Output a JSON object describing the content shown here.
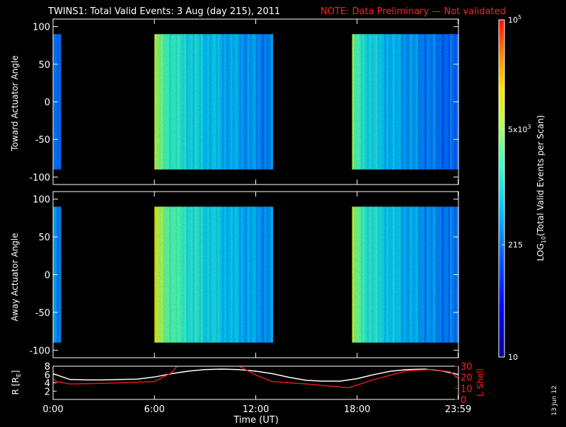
{
  "title": {
    "text": "TWINS1: Total Valid Events:  3 Aug (day 215), 2011",
    "note": "NOTE: Data Preliminary — Not validated",
    "note_color": "#ff2020"
  },
  "stamp": "13 Jun 12",
  "chart_data": [
    {
      "type": "heatmap",
      "panel": "toward",
      "ylabel": "Toward Actuator Angle",
      "ylim": [
        -110,
        110
      ],
      "yticks": [
        100,
        50,
        0,
        -50,
        -100
      ],
      "angle_range": [
        -90,
        90
      ],
      "x_unit": "hours UT",
      "xlim": [
        0,
        24
      ],
      "data_intervals": [
        {
          "start": 0.0,
          "end": 0.45,
          "log_value_start": 2.3,
          "log_value_end": 2.2
        },
        {
          "start": 6.0,
          "end": 13.0,
          "log_value_start": 3.8,
          "log_value_end": 2.4
        },
        {
          "start": 17.7,
          "end": 24.0,
          "log_value_start": 3.6,
          "log_value_end": 2.2
        }
      ]
    },
    {
      "type": "heatmap",
      "panel": "away",
      "ylabel": "Away Actuator Angle",
      "ylim": [
        -110,
        110
      ],
      "yticks": [
        100,
        50,
        0,
        -50,
        -100
      ],
      "angle_range": [
        -90,
        90
      ],
      "x_unit": "hours UT",
      "xlim": [
        0,
        24
      ],
      "data_intervals": [
        {
          "start": 0.0,
          "end": 0.45,
          "log_value_start": 2.6,
          "log_value_end": 2.3
        },
        {
          "start": 6.0,
          "end": 13.0,
          "log_value_start": 4.0,
          "log_value_end": 2.5
        },
        {
          "start": 17.7,
          "end": 24.0,
          "log_value_start": 3.8,
          "log_value_end": 2.3
        }
      ]
    },
    {
      "type": "line",
      "panel": "orbit",
      "ylabel_left": "R [R",
      "ylabel_left_sub": "E",
      "ylabel_left_close": "]",
      "ylabel_right": "L Shell",
      "ylim_left": [
        0,
        8
      ],
      "ylim_right": [
        0,
        30
      ],
      "yticks_left": [
        8,
        6,
        4,
        2
      ],
      "yticks_right": [
        30,
        20,
        10,
        0
      ],
      "xlim": [
        0,
        24
      ],
      "xticks": [
        0,
        6,
        12,
        18,
        23.98
      ],
      "xtick_labels": [
        "0:00",
        "6:00",
        "12:00",
        "18:00",
        "23:59"
      ],
      "xlabel": "Time (UT)",
      "series": [
        {
          "color": "#ffffff",
          "axis": "left",
          "x": [
            0,
            1,
            2,
            3,
            4,
            5,
            6,
            7,
            8,
            9,
            10,
            11,
            12,
            13,
            14,
            15,
            16,
            17,
            18,
            19,
            20,
            21,
            22,
            23,
            24
          ],
          "y": [
            6.2,
            4.8,
            4.7,
            4.7,
            4.8,
            4.9,
            5.4,
            6.2,
            6.8,
            7.2,
            7.3,
            7.2,
            6.8,
            6.2,
            5.3,
            4.6,
            4.4,
            4.4,
            5.0,
            6.0,
            6.8,
            7.2,
            7.3,
            6.9,
            6.0
          ]
        },
        {
          "color": "#e01818",
          "axis": "right",
          "x": [
            0,
            0.2,
            1,
            3,
            6,
            7,
            7.4,
            10.9,
            12,
            13,
            15,
            17.5,
            19,
            21,
            22.5,
            23.5,
            24
          ],
          "y": [
            19,
            16,
            14,
            14.5,
            16,
            24,
            31,
            31,
            22,
            16,
            14,
            10.5,
            18,
            26,
            27,
            25,
            19
          ]
        }
      ]
    },
    {
      "type": "colorbar",
      "label_prefix": "LOG",
      "label_sub": "10",
      "label_suffix": "(Total Valid  Events per Scan)",
      "log_range": [
        1,
        5
      ],
      "ticks": [
        {
          "log_value": 5,
          "label": "10",
          "sup": "5"
        },
        {
          "log_value": 3.699,
          "label": "5x10",
          "sup": "3"
        },
        {
          "log_value": 2.332,
          "label": "215",
          "sup": ""
        },
        {
          "log_value": 1,
          "label": "10",
          "sup": ""
        }
      ]
    }
  ]
}
